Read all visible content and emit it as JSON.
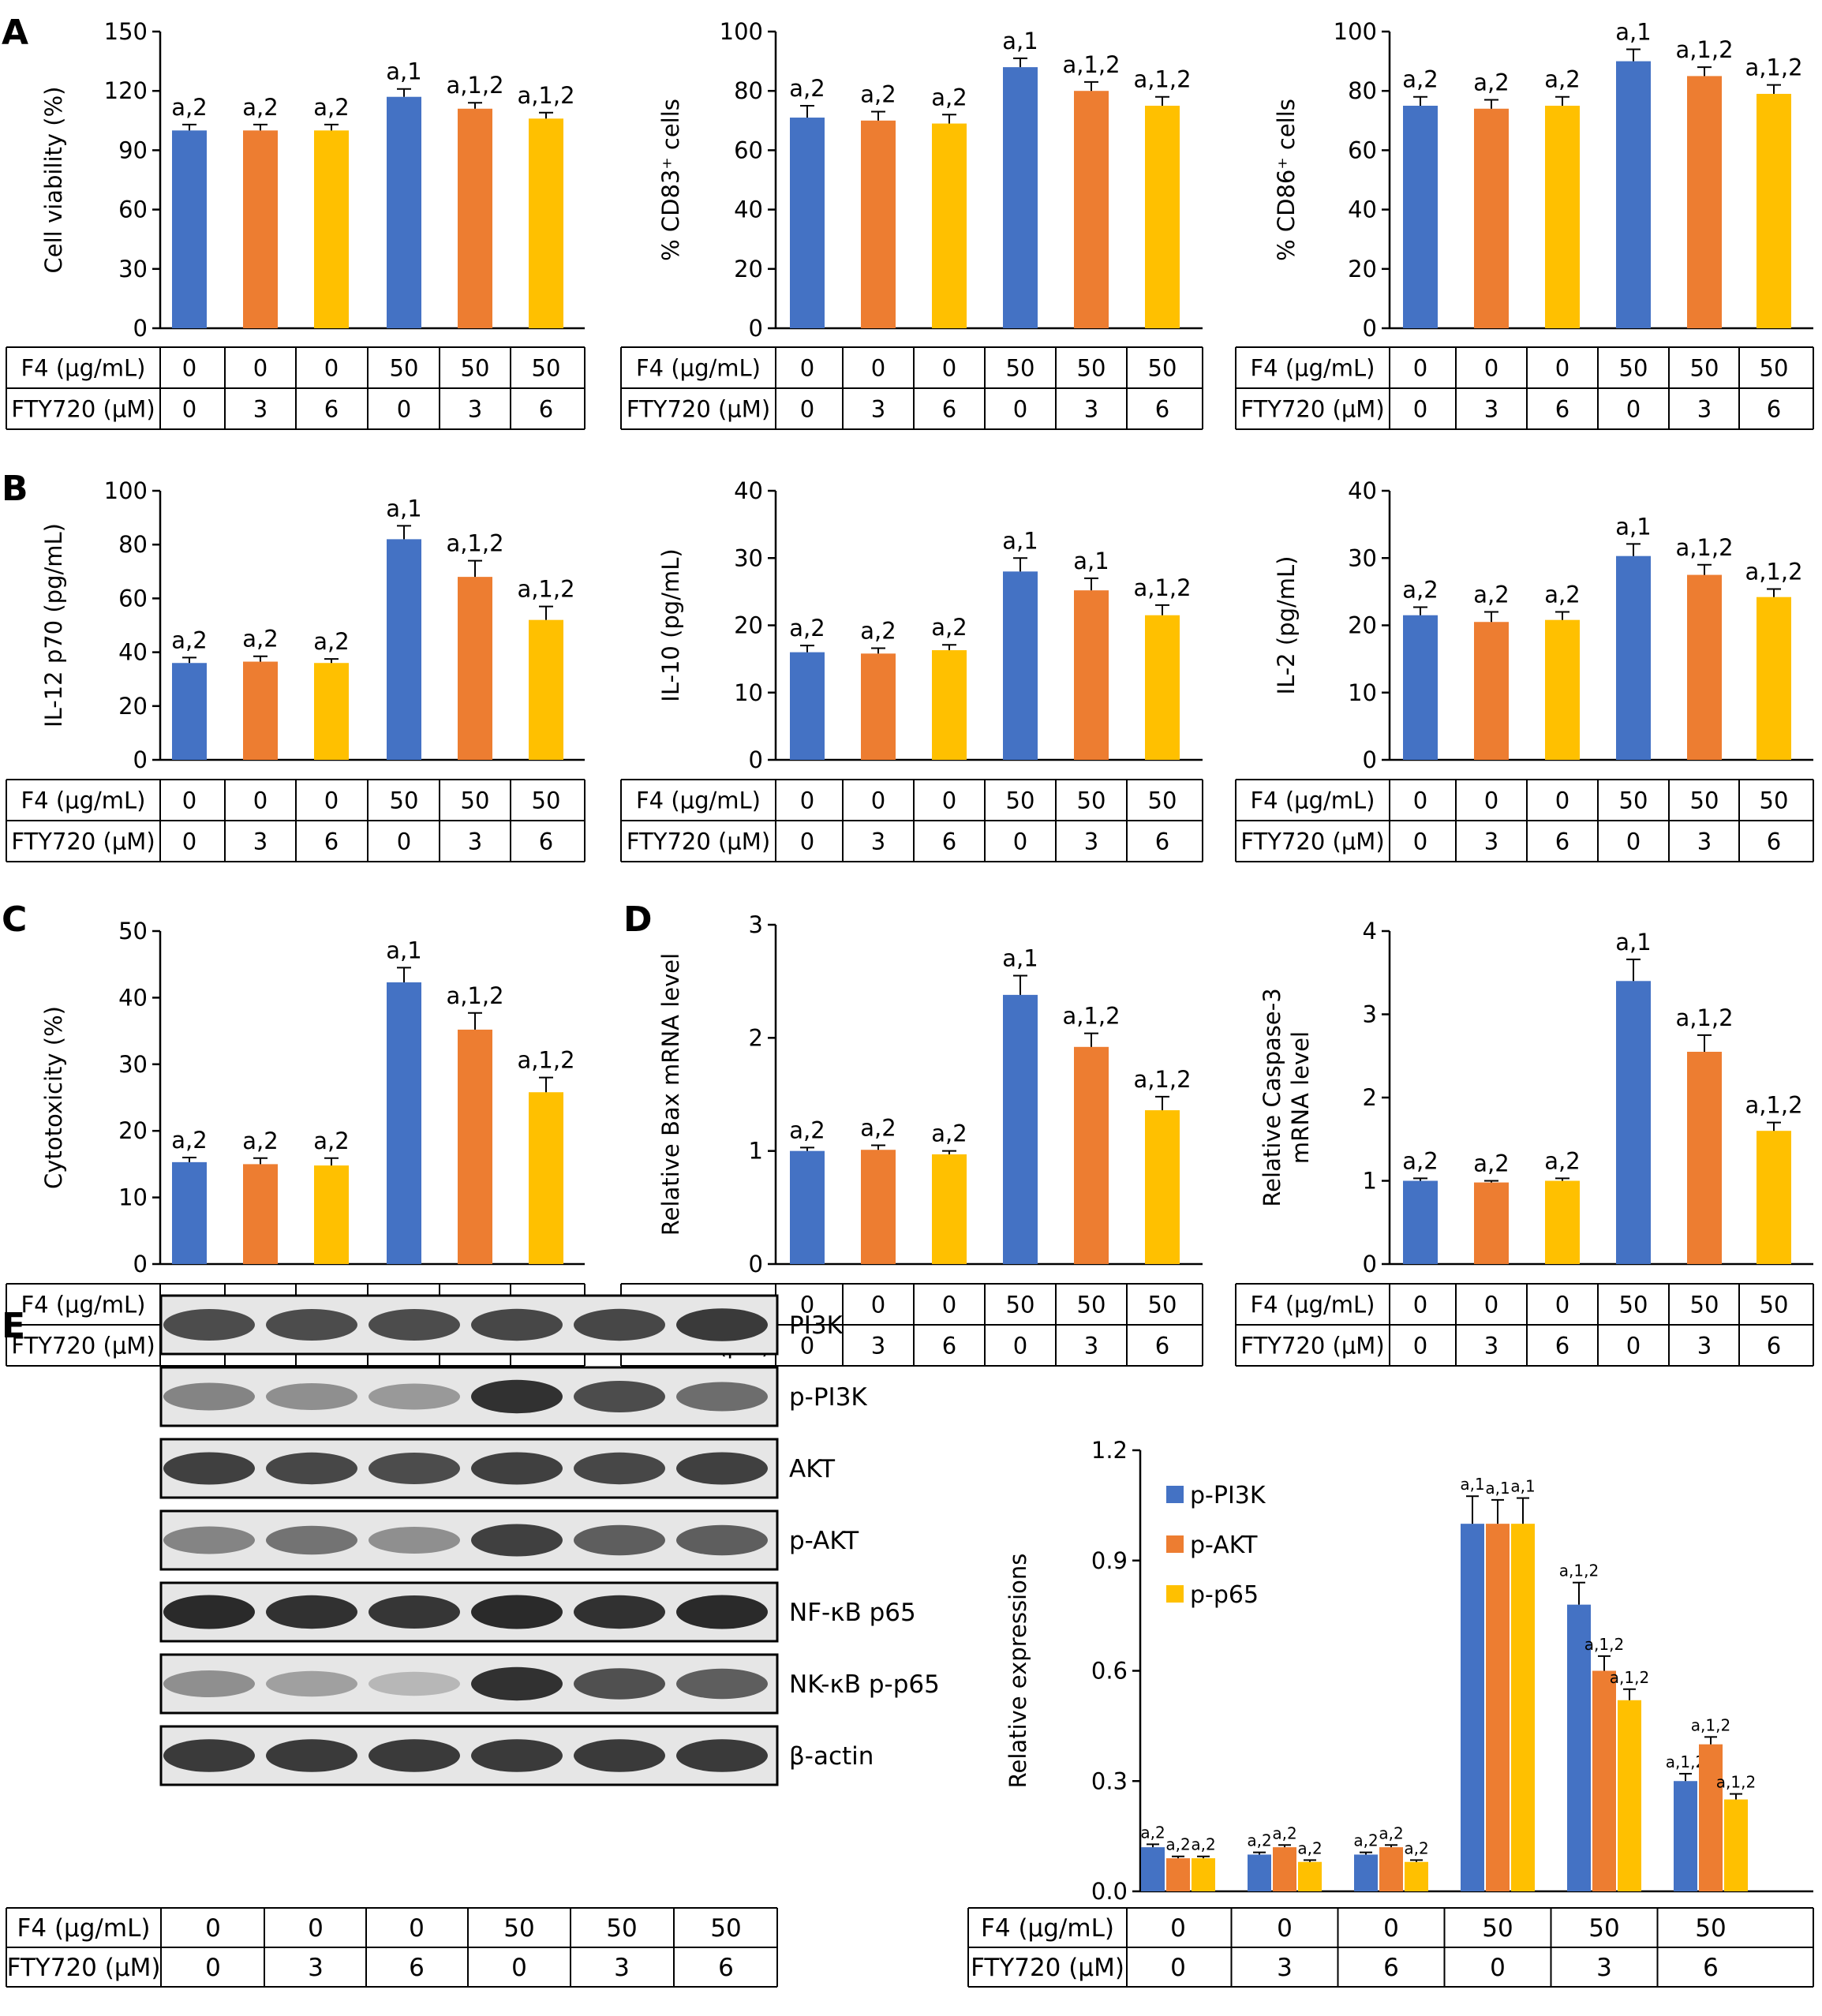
{
  "colors": {
    "blue": "#4472C4",
    "orange": "#ED7D31",
    "yellow": "#FFC000",
    "axis": "#000000",
    "err": "#000000"
  },
  "panel_letters": [
    "A",
    "B",
    "C",
    "D",
    "E"
  ],
  "condition_table": {
    "row1_label": "F4 (μg/mL)",
    "row2_label": "FTY720 (μM)",
    "row1_values": [
      "0",
      "0",
      "0",
      "50",
      "50",
      "50"
    ],
    "row2_values": [
      "0",
      "3",
      "6",
      "0",
      "3",
      "6"
    ]
  },
  "blot": {
    "bands": [
      "PI3K",
      "p-PI3K",
      "AKT",
      "p-AKT",
      "NF-κB p65",
      "NK-κB p-p65",
      "β-actin"
    ],
    "intensity": [
      [
        0.8,
        0.8,
        0.8,
        0.82,
        0.82,
        0.88
      ],
      [
        0.55,
        0.5,
        0.45,
        0.92,
        0.8,
        0.65
      ],
      [
        0.85,
        0.82,
        0.8,
        0.85,
        0.82,
        0.85
      ],
      [
        0.55,
        0.62,
        0.5,
        0.85,
        0.72,
        0.72
      ],
      [
        0.95,
        0.92,
        0.9,
        0.95,
        0.92,
        0.95
      ],
      [
        0.5,
        0.42,
        0.32,
        0.92,
        0.78,
        0.72
      ],
      [
        0.88,
        0.88,
        0.88,
        0.88,
        0.88,
        0.88
      ]
    ]
  },
  "chart_data": [
    {
      "type": "bar",
      "panel": "A",
      "ylabel": "Cell viability (%)",
      "ylim": [
        0,
        150
      ],
      "yticks": [
        "0",
        "30",
        "60",
        "90",
        "120",
        "150"
      ],
      "values": [
        100,
        100,
        100,
        117,
        111,
        106
      ],
      "errors": [
        3,
        3,
        3,
        4,
        3,
        3
      ],
      "labels": [
        "a,2",
        "a,2",
        "a,2",
        "a,1",
        "a,1,2",
        "a,1,2"
      ]
    },
    {
      "type": "bar",
      "panel": "A",
      "ylabel": "% CD83⁺ cells",
      "ylim": [
        0,
        100
      ],
      "yticks": [
        "0",
        "20",
        "40",
        "60",
        "80",
        "100"
      ],
      "values": [
        71,
        70,
        69,
        88,
        80,
        75
      ],
      "errors": [
        4,
        3,
        3,
        3,
        3,
        3
      ],
      "labels": [
        "a,2",
        "a,2",
        "a,2",
        "a,1",
        "a,1,2",
        "a,1,2"
      ]
    },
    {
      "type": "bar",
      "panel": "A",
      "ylabel": "% CD86⁺ cells",
      "ylim": [
        0,
        100
      ],
      "yticks": [
        "0",
        "20",
        "40",
        "60",
        "80",
        "100"
      ],
      "values": [
        75,
        74,
        75,
        90,
        85,
        79
      ],
      "errors": [
        3,
        3,
        3,
        4,
        3,
        3
      ],
      "labels": [
        "a,2",
        "a,2",
        "a,2",
        "a,1",
        "a,1,2",
        "a,1,2"
      ]
    },
    {
      "type": "bar",
      "panel": "B",
      "ylabel": "IL-12 p70 (pg/mL)",
      "ylim": [
        0,
        100
      ],
      "yticks": [
        "0",
        "20",
        "40",
        "60",
        "80",
        "100"
      ],
      "values": [
        36,
        36.5,
        36,
        82,
        68,
        52
      ],
      "errors": [
        2,
        2,
        1.5,
        5,
        6,
        5
      ],
      "labels": [
        "a,2",
        "a,2",
        "a,2",
        "a,1",
        "a,1,2",
        "a,1,2"
      ]
    },
    {
      "type": "bar",
      "panel": "B",
      "ylabel": "IL-10 (pg/mL)",
      "ylim": [
        0,
        40
      ],
      "yticks": [
        "0",
        "10",
        "20",
        "30",
        "40"
      ],
      "values": [
        16,
        15.8,
        16.3,
        28,
        25.2,
        21.5
      ],
      "errors": [
        1,
        0.8,
        0.8,
        2,
        1.8,
        1.5
      ],
      "labels": [
        "a,2",
        "a,2",
        "a,2",
        "a,1",
        "a,1",
        "a,1,2"
      ]
    },
    {
      "type": "bar",
      "panel": "B",
      "ylabel": "IL-2 (pg/mL)",
      "ylim": [
        0,
        40
      ],
      "yticks": [
        "0",
        "10",
        "20",
        "30",
        "40"
      ],
      "values": [
        21.5,
        20.5,
        20.8,
        30.3,
        27.5,
        24.2
      ],
      "errors": [
        1.2,
        1.5,
        1.2,
        1.8,
        1.5,
        1.2
      ],
      "labels": [
        "a,2",
        "a,2",
        "a,2",
        "a,1",
        "a,1,2",
        "a,1,2"
      ]
    },
    {
      "type": "bar",
      "panel": "C",
      "ylabel": "Cytotoxicity (%)",
      "ylim": [
        0,
        50
      ],
      "yticks": [
        "0",
        "10",
        "20",
        "30",
        "40",
        "50"
      ],
      "values": [
        15.3,
        15,
        14.8,
        42.3,
        35.2,
        25.8
      ],
      "errors": [
        0.7,
        0.9,
        1.1,
        2.2,
        2.5,
        2.2
      ],
      "labels": [
        "a,2",
        "a,2",
        "a,2",
        "a,1",
        "a,1,2",
        "a,1,2"
      ]
    },
    {
      "type": "bar",
      "panel": "D",
      "ylabel": "Relative Bax mRNA level",
      "ylim": [
        0,
        3
      ],
      "yticks": [
        "0",
        "1",
        "2",
        "3"
      ],
      "values": [
        1.0,
        1.01,
        0.97,
        2.38,
        1.92,
        1.36
      ],
      "errors": [
        0.03,
        0.04,
        0.03,
        0.17,
        0.12,
        0.12
      ],
      "labels": [
        "a,2",
        "a,2",
        "a,2",
        "a,1",
        "a,1,2",
        "a,1,2"
      ]
    },
    {
      "type": "bar",
      "panel": "D",
      "ylabel": "Relative Caspase-3 mRNA level",
      "ylim": [
        0,
        4
      ],
      "yticks": [
        "0",
        "1",
        "2",
        "3",
        "4"
      ],
      "values": [
        1.0,
        0.98,
        1.0,
        3.4,
        2.55,
        1.6
      ],
      "errors": [
        0.03,
        0.02,
        0.03,
        0.26,
        0.2,
        0.1
      ],
      "labels": [
        "a,2",
        "a,2",
        "a,2",
        "a,1",
        "a,1,2",
        "a,1,2"
      ]
    },
    {
      "type": "bar",
      "panel": "E",
      "ylabel": "Relative expressions",
      "ylim": [
        0,
        1.2
      ],
      "yticks": [
        "0.0",
        "0.3",
        "0.6",
        "0.9",
        "1.2"
      ],
      "series": [
        {
          "name": "p-PI3K",
          "values": [
            0.12,
            0.1,
            0.1,
            1.0,
            0.78,
            0.3
          ],
          "errors": [
            0.008,
            0.006,
            0.006,
            0.075,
            0.06,
            0.02
          ],
          "labels": [
            "a,2",
            "a,2",
            "a,2",
            "a,1",
            "a,1,2",
            "a,1,2"
          ]
        },
        {
          "name": "p-AKT",
          "values": [
            0.09,
            0.12,
            0.12,
            1.0,
            0.6,
            0.4
          ],
          "errors": [
            0.005,
            0.006,
            0.006,
            0.065,
            0.04,
            0.02
          ],
          "labels": [
            "a,2",
            "a,2",
            "a,2",
            "a,1",
            "a,1,2",
            "a,1,2"
          ]
        },
        {
          "name": "p-p65",
          "values": [
            0.09,
            0.08,
            0.08,
            1.0,
            0.52,
            0.25
          ],
          "errors": [
            0.005,
            0.005,
            0.005,
            0.07,
            0.03,
            0.015
          ],
          "labels": [
            "a,2",
            "a,2",
            "a,2",
            "a,1",
            "a,1,2",
            "a,1,2"
          ]
        }
      ],
      "legend_position": "top-left"
    }
  ]
}
